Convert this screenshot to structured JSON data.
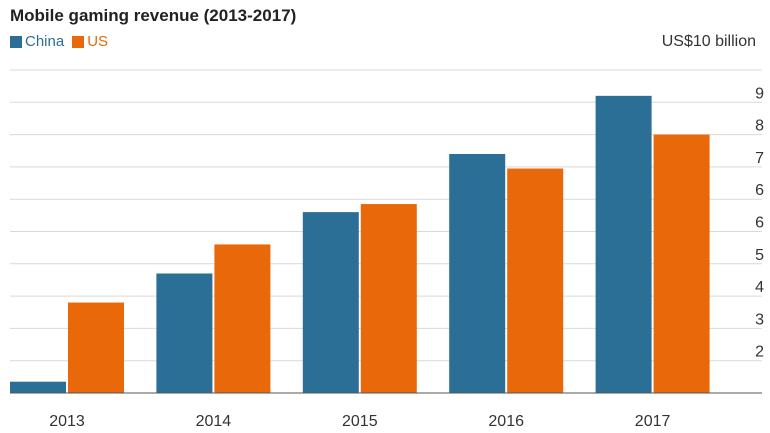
{
  "chart_data": {
    "type": "bar",
    "title": "Mobile gaming revenue (2013-2017)",
    "unit_label": "US$10 billion",
    "categories": [
      "2013",
      "2014",
      "2015",
      "2016",
      "2017"
    ],
    "series": [
      {
        "name": "China",
        "color": "#2b6e96",
        "values": [
          1.35,
          4.7,
          6.6,
          8.4,
          10.2
        ]
      },
      {
        "name": "US",
        "color": "#e8680a",
        "values": [
          3.8,
          5.6,
          6.85,
          7.95,
          9.0
        ]
      }
    ],
    "y_tick_labels": [
      "2",
      "3",
      "4",
      "5",
      "6",
      "6",
      "7",
      "8",
      "9"
    ],
    "ylim": [
      1,
      11
    ],
    "grid": true,
    "legend_position": "top-left"
  }
}
